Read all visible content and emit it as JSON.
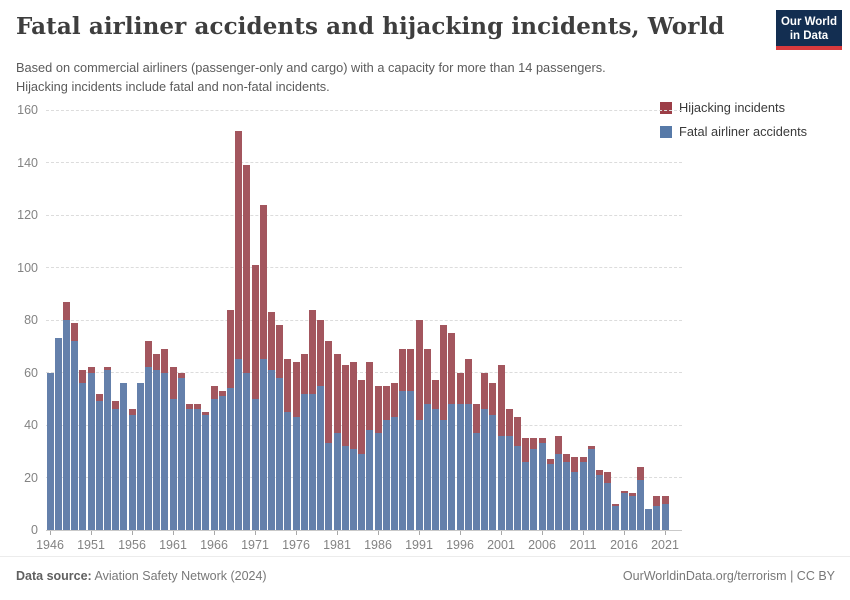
{
  "header": {
    "title": "Fatal airliner accidents and hijacking incidents, World",
    "subtitle_line1": "Based on commercial airliners (passenger-only and cargo) with a capacity for more than 14 passengers.",
    "subtitle_line2": "Hijacking incidents include fatal and non-fatal incidents.",
    "logo_line1": "Our World",
    "logo_line2": "in Data",
    "logo_bg_color": "#132e51",
    "logo_stripe_color": "#d93a3d"
  },
  "legend": {
    "items": [
      {
        "label": "Hijacking incidents",
        "color": "#9c3e47"
      },
      {
        "label": "Fatal airliner accidents",
        "color": "#577aa8"
      }
    ]
  },
  "chart_data": {
    "type": "bar",
    "stacked": true,
    "title": "Fatal airliner accidents and hijacking incidents, World",
    "xlabel": "",
    "ylabel": "",
    "ylim": [
      0,
      160
    ],
    "y_ticks": [
      0,
      20,
      40,
      60,
      80,
      100,
      120,
      140,
      160
    ],
    "x_tick_labels": [
      1946,
      1951,
      1956,
      1961,
      1966,
      1971,
      1976,
      1981,
      1986,
      1991,
      1996,
      2001,
      2006,
      2011,
      2016,
      2021
    ],
    "grid": "dashed-horizontal",
    "legend_position": "top-right",
    "bar_colors": {
      "fatal": "#6480ab",
      "hijacking": "#a3565e"
    },
    "years": [
      1946,
      1947,
      1948,
      1949,
      1950,
      1951,
      1952,
      1953,
      1954,
      1955,
      1956,
      1957,
      1958,
      1959,
      1960,
      1961,
      1962,
      1963,
      1964,
      1965,
      1966,
      1967,
      1968,
      1969,
      1970,
      1971,
      1972,
      1973,
      1974,
      1975,
      1976,
      1977,
      1978,
      1979,
      1980,
      1981,
      1982,
      1983,
      1984,
      1985,
      1986,
      1987,
      1988,
      1989,
      1990,
      1991,
      1992,
      1993,
      1994,
      1995,
      1996,
      1997,
      1998,
      1999,
      2000,
      2001,
      2002,
      2003,
      2004,
      2005,
      2006,
      2007,
      2008,
      2009,
      2010,
      2011,
      2012,
      2013,
      2014,
      2015,
      2016,
      2017,
      2018,
      2019,
      2020,
      2021
    ],
    "series": [
      {
        "name": "Fatal airliner accidents",
        "values": [
          60,
          73,
          80,
          72,
          56,
          60,
          49,
          61,
          46,
          56,
          44,
          56,
          62,
          61,
          60,
          50,
          58,
          46,
          46,
          44,
          50,
          51,
          54,
          65,
          60,
          50,
          65,
          61,
          58,
          45,
          43,
          52,
          52,
          55,
          33,
          37,
          32,
          31,
          29,
          38,
          37,
          42,
          43,
          53,
          53,
          42,
          48,
          46,
          42,
          48,
          48,
          48,
          37,
          46,
          44,
          36,
          36,
          32,
          26,
          31,
          33,
          25,
          29,
          26,
          22,
          26,
          31,
          21,
          18,
          9,
          14,
          13,
          19,
          8,
          9,
          10
        ]
      },
      {
        "name": "Hijacking incidents",
        "values": [
          0,
          0,
          7,
          7,
          5,
          2,
          3,
          1,
          3,
          0,
          2,
          0,
          10,
          6,
          9,
          12,
          2,
          2,
          2,
          1,
          5,
          2,
          30,
          87,
          79,
          51,
          59,
          22,
          20,
          20,
          21,
          15,
          32,
          25,
          39,
          30,
          31,
          33,
          28,
          26,
          18,
          13,
          13,
          16,
          16,
          38,
          21,
          11,
          36,
          27,
          12,
          17,
          11,
          14,
          12,
          27,
          10,
          11,
          9,
          4,
          2,
          2,
          7,
          3,
          6,
          2,
          1,
          2,
          4,
          1,
          1,
          1,
          5,
          0,
          4,
          3
        ]
      }
    ]
  },
  "footer": {
    "source_label": "Data source:",
    "source_text": " Aviation Safety Network (2024)",
    "credit_text": "OurWorldinData.org/terrorism | CC BY"
  }
}
